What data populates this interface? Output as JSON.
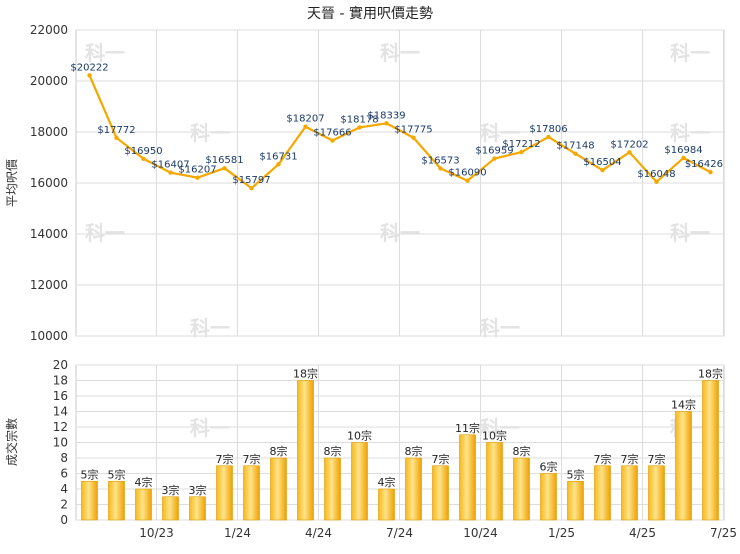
{
  "title": "天晉 - 實用呎價走勢",
  "chart_data": [
    {
      "type": "line",
      "ylabel": "平均呎價",
      "ylim": [
        10000,
        22000
      ],
      "yticks": [
        10000,
        12000,
        14000,
        16000,
        18000,
        20000,
        22000
      ],
      "series": [
        {
          "color": "#f5a800",
          "values": [
            20222,
            17772,
            16950,
            16407,
            16207,
            16581,
            15797,
            16731,
            18207,
            17666,
            18178,
            18339,
            17775,
            16573,
            16090,
            16959,
            17212,
            17806,
            17148,
            16504,
            17202,
            16048,
            16984,
            16426
          ],
          "labels": [
            "$20222",
            "$17772",
            "$16950",
            "$16407",
            "$16207",
            "$16581",
            "$15797",
            "$16731",
            "$18207",
            "$17666",
            "$18178",
            "$18339",
            "$17775",
            "$16573",
            "$16090",
            "$16959",
            "$17212",
            "$17806",
            "$17148",
            "$16504",
            "$17202",
            "$16048",
            "$16984",
            "$16426"
          ]
        }
      ],
      "grid": true
    },
    {
      "type": "bar",
      "ylabel": "成交宗數",
      "ylim": [
        0,
        20
      ],
      "yticks": [
        0,
        2,
        4,
        6,
        8,
        10,
        12,
        14,
        16,
        18,
        20
      ],
      "xticks": [
        {
          "index": 2,
          "label": "10/23"
        },
        {
          "index": 5,
          "label": "1/24"
        },
        {
          "index": 8,
          "label": "4/24"
        },
        {
          "index": 11,
          "label": "7/24"
        },
        {
          "index": 14,
          "label": "10/24"
        },
        {
          "index": 17,
          "label": "1/25"
        },
        {
          "index": 20,
          "label": "4/25"
        },
        {
          "index": 23,
          "label": "7/25"
        }
      ],
      "series": [
        {
          "color": "#f5a800",
          "values": [
            5,
            5,
            4,
            3,
            3,
            7,
            7,
            8,
            18,
            8,
            10,
            4,
            8,
            7,
            11,
            10,
            8,
            6,
            5,
            7,
            7,
            7,
            14,
            18
          ],
          "labels": [
            "5宗",
            "5宗",
            "4宗",
            "3宗",
            "3宗",
            "7宗",
            "7宗",
            "8宗",
            "18宗",
            "8宗",
            "10宗",
            "4宗",
            "8宗",
            "7宗",
            "11宗",
            "10宗",
            "8宗",
            "6宗",
            "5宗",
            "7宗",
            "7宗",
            "7宗",
            "14宗",
            "18宗"
          ]
        }
      ],
      "grid": true
    }
  ],
  "watermark": "科一"
}
